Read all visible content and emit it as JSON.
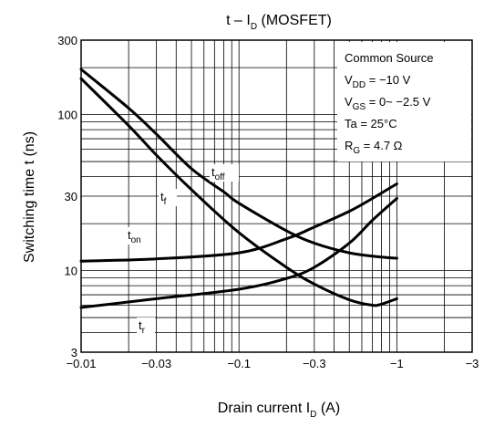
{
  "chart_data": {
    "type": "line",
    "title_main": "t – I",
    "title_sub": "D",
    "title_suffix": " (MOSFET)",
    "xlabel_main": "Drain current   I",
    "xlabel_sub": "D",
    "xlabel_suffix": "   (A)",
    "ylabel": "Switching time   t   (ns)",
    "x_scale": "log",
    "y_scale": "log",
    "xlim": [
      -0.01,
      -3
    ],
    "ylim": [
      3,
      300
    ],
    "grid": true,
    "x_ticks": [
      -0.01,
      -0.03,
      -0.1,
      -0.3,
      -1,
      -3
    ],
    "x_tick_labels": [
      "−0.01",
      "−0.03",
      "−0.1",
      "−0.3",
      "−1",
      "−3"
    ],
    "y_ticks": [
      3,
      10,
      30,
      100,
      300
    ],
    "y_tick_labels": [
      "3",
      "10",
      "30",
      "100",
      "300"
    ],
    "conditions": [
      {
        "main": "Common Source",
        "sub": "",
        "suffix": ""
      },
      {
        "main": "V",
        "sub": "DD",
        "suffix": " = −10 V"
      },
      {
        "main": "V",
        "sub": "GS",
        "suffix": " = 0~ −2.5 V"
      },
      {
        "main": "Ta = 25°C",
        "sub": "",
        "suffix": ""
      },
      {
        "main": "R",
        "sub": "G",
        "suffix": " = 4.7 Ω"
      }
    ],
    "series": [
      {
        "name": "toff",
        "label_main": "t",
        "label_sub": "off",
        "x": [
          -0.01,
          -0.02,
          -0.03,
          -0.05,
          -0.08,
          -0.1,
          -0.2,
          -0.3,
          -0.5,
          -0.8,
          -1
        ],
        "y": [
          195,
          110,
          75,
          45,
          32,
          27,
          18,
          15,
          13,
          12.2,
          12
        ]
      },
      {
        "name": "tf",
        "label_main": "t",
        "label_sub": "f",
        "x": [
          -0.01,
          -0.02,
          -0.03,
          -0.05,
          -0.1,
          -0.2,
          -0.3,
          -0.5,
          -0.7,
          -0.8,
          -1
        ],
        "y": [
          170,
          85,
          55,
          33,
          17.5,
          10.5,
          8.2,
          6.5,
          6.0,
          6.1,
          6.6
        ]
      },
      {
        "name": "ton",
        "label_main": "t",
        "label_sub": "on",
        "x": [
          -0.01,
          -0.03,
          -0.1,
          -0.2,
          -0.3,
          -0.5,
          -0.7,
          -1
        ],
        "y": [
          11.5,
          11.9,
          13,
          16,
          19,
          24,
          29,
          36
        ]
      },
      {
        "name": "tr",
        "label_main": "t",
        "label_sub": "r",
        "x": [
          -0.01,
          -0.03,
          -0.1,
          -0.2,
          -0.3,
          -0.5,
          -0.7,
          -1
        ],
        "y": [
          5.8,
          6.6,
          7.6,
          8.9,
          10.5,
          15,
          21,
          29
        ]
      }
    ]
  }
}
